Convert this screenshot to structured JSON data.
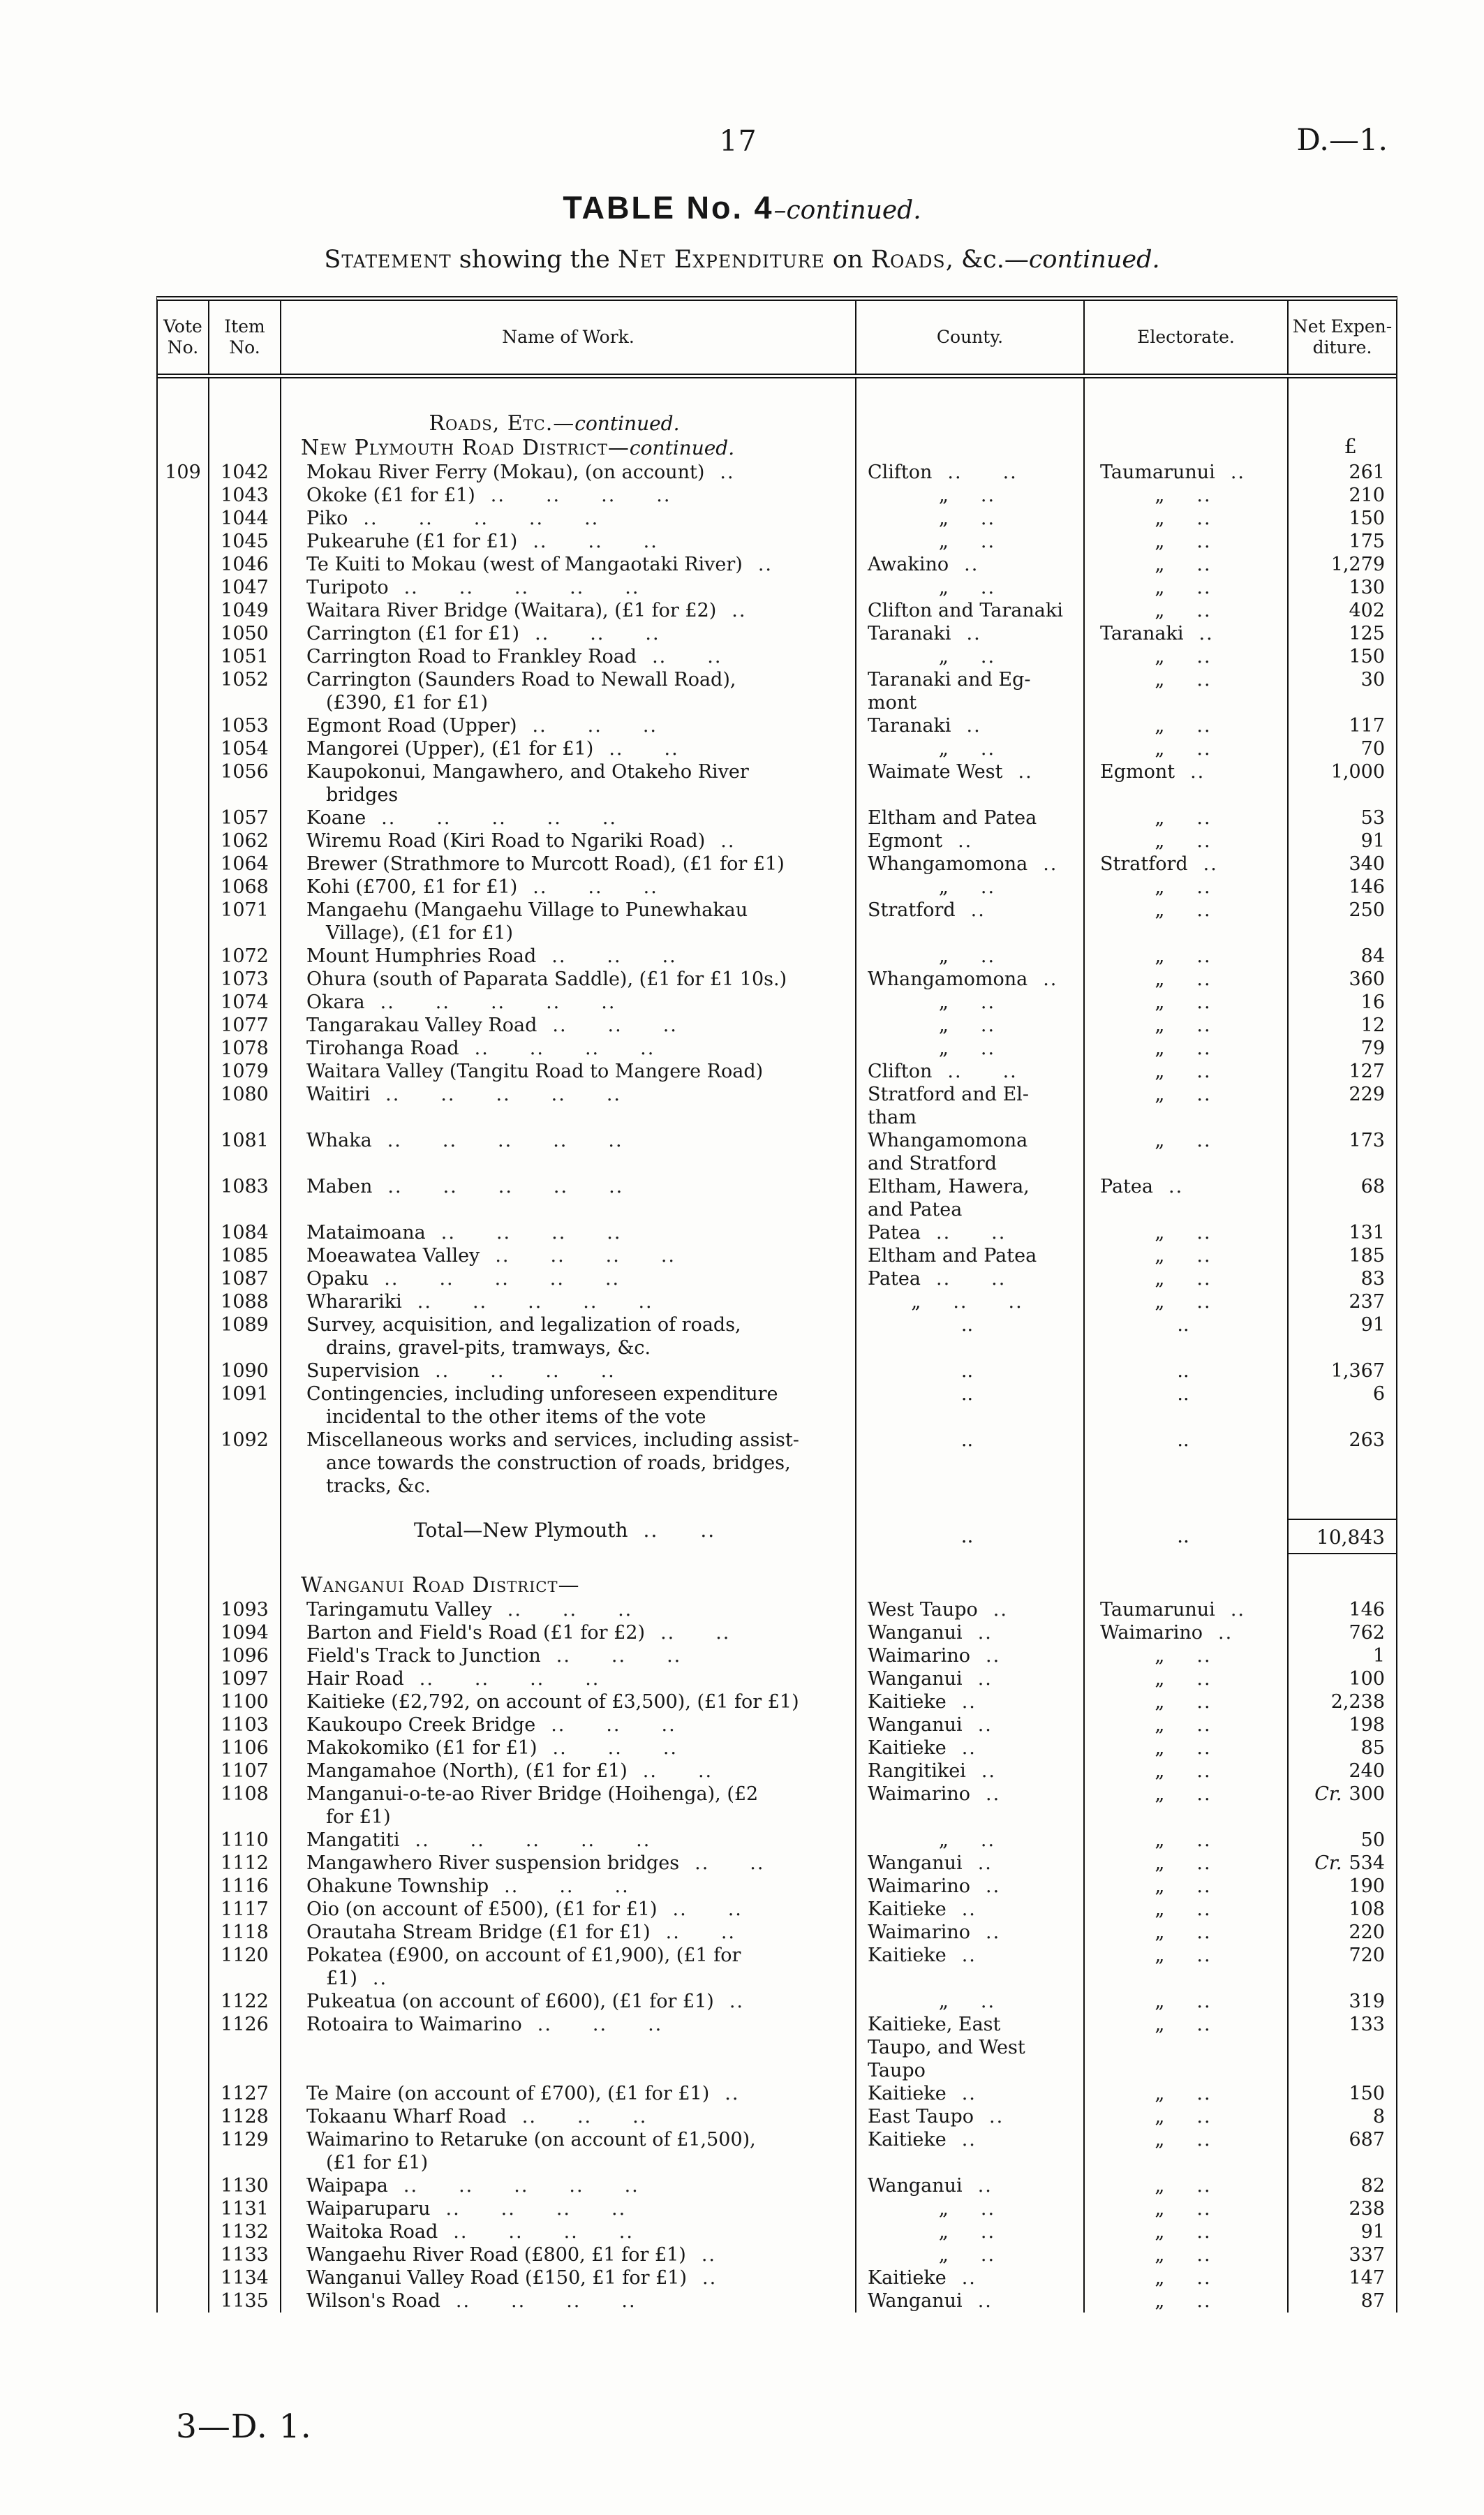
{
  "page": {
    "page_number": "17",
    "doc_ref": "D.—1.",
    "footer": "3—D. 1."
  },
  "title": {
    "main": "TABLE No. 4",
    "dash": "–",
    "cont": "continued."
  },
  "statement": {
    "sc1": "Statement",
    "mid1": " showing the ",
    "sc2": "Net Expenditure",
    "mid2": " on ",
    "sc3": "Roads",
    "tail": ", &c.—",
    "cont": "continued."
  },
  "table": {
    "headers": [
      "Vote\nNo.",
      "Item\nNo.",
      "Name of Work.",
      "County.",
      "Electorate.",
      "Net Expen-\nditure."
    ],
    "rows": [
      {
        "t": "sp",
        "h": 40
      },
      {
        "t": "h1",
        "text": "Roads, Etc.",
        "cont": "continued."
      },
      {
        "t": "h2",
        "text": "New Plymouth Road District",
        "cont": "continued.",
        "pound": "£"
      },
      {
        "v": "109",
        "i": "1042",
        "n": "Mokau River Ferry (Mokau), (on account)",
        "nd": 1,
        "c": "Clifton",
        "cd": 2,
        "e": "Taumarunui",
        "ed": 1,
        "a": "261"
      },
      {
        "i": "1043",
        "n": "Okoke (£1 for £1)",
        "nd": 4,
        "c": "„",
        "cd": 1,
        "e": "„",
        "ed": 1,
        "a": "210"
      },
      {
        "i": "1044",
        "n": "Piko",
        "nd": 5,
        "c": "„",
        "cd": 1,
        "e": "„",
        "ed": 1,
        "a": "150"
      },
      {
        "i": "1045",
        "n": "Pukearuhe (£1 for £1)",
        "nd": 3,
        "c": "„",
        "cd": 1,
        "e": "„",
        "ed": 1,
        "a": "175"
      },
      {
        "i": "1046",
        "n": "Te Kuiti to Mokau (west of Mangaotaki River)",
        "nd": 1,
        "c": "Awakino",
        "cd": 1,
        "e": "„",
        "ed": 1,
        "a": "1,279"
      },
      {
        "i": "1047",
        "n": "Turipoto",
        "nd": 5,
        "c": "„",
        "cd": 1,
        "e": "„",
        "ed": 1,
        "a": "130"
      },
      {
        "i": "1049",
        "n": "Waitara River Bridge (Waitara), (£1 for £2)",
        "nd": 1,
        "c": "Clifton and Taranaki",
        "cd": 0,
        "e": "„",
        "ed": 1,
        "a": "402"
      },
      {
        "i": "1050",
        "n": "Carrington (£1 for £1)",
        "nd": 3,
        "c": "Taranaki",
        "cd": 1,
        "e": "Taranaki",
        "ed": 1,
        "a": "125"
      },
      {
        "i": "1051",
        "n": "Carrington Road to Frankley Road",
        "nd": 2,
        "c": "„",
        "cd": 1,
        "e": "„",
        "ed": 1,
        "a": "150"
      },
      {
        "i": "1052",
        "n": "Carrington (Saunders Road to Newall Road),\n(£390, £1 for £1)",
        "nd": 0,
        "c": "Taranaki and Eg-\nmont",
        "cd": 0,
        "e": "„",
        "ed": 1,
        "a": "30"
      },
      {
        "i": "1053",
        "n": "Egmont Road (Upper)",
        "nd": 3,
        "c": "Taranaki",
        "cd": 1,
        "e": "„",
        "ed": 1,
        "a": "117"
      },
      {
        "i": "1054",
        "n": "Mangorei (Upper), (£1 for £1)",
        "nd": 2,
        "c": "„",
        "cd": 1,
        "e": "„",
        "ed": 1,
        "a": "70"
      },
      {
        "i": "1056",
        "n": "Kaupokonui, Mangawhero, and Otakeho River\nbridges",
        "nd": 0,
        "c": "Waimate West",
        "cd": 1,
        "e": "Egmont",
        "ed": 1,
        "a": "1,000"
      },
      {
        "i": "1057",
        "n": "Koane",
        "nd": 5,
        "c": "Eltham and Patea",
        "cd": 0,
        "e": "„",
        "ed": 1,
        "a": "53"
      },
      {
        "i": "1062",
        "n": "Wiremu Road (Kiri Road to Ngariki Road)",
        "nd": 1,
        "c": "Egmont",
        "cd": 1,
        "e": "„",
        "ed": 1,
        "a": "91"
      },
      {
        "i": "1064",
        "n": "Brewer (Strathmore to Murcott Road), (£1 for £1)",
        "nd": 0,
        "c": "Whangamomona",
        "cd": 1,
        "e": "Stratford",
        "ed": 1,
        "a": "340"
      },
      {
        "i": "1068",
        "n": "Kohi (£700, £1 for £1)",
        "nd": 3,
        "c": "„",
        "cd": 1,
        "e": "„",
        "ed": 1,
        "a": "146"
      },
      {
        "i": "1071",
        "n": "Mangaehu (Mangaehu Village to Punewhakau\nVillage), (£1 for £1)",
        "nd": 0,
        "c": "Stratford",
        "cd": 1,
        "e": "„",
        "ed": 1,
        "a": "250"
      },
      {
        "i": "1072",
        "n": "Mount Humphries Road",
        "nd": 3,
        "c": "„",
        "cd": 1,
        "e": "„",
        "ed": 1,
        "a": "84"
      },
      {
        "i": "1073",
        "n": "Ohura (south of Paparata Saddle), (£1 for £1 10s.)",
        "nd": 0,
        "c": "Whangamomona",
        "cd": 1,
        "e": "„",
        "ed": 1,
        "a": "360"
      },
      {
        "i": "1074",
        "n": "Okara",
        "nd": 5,
        "c": "„",
        "cd": 1,
        "e": "„",
        "ed": 1,
        "a": "16"
      },
      {
        "i": "1077",
        "n": "Tangarakau Valley Road",
        "nd": 3,
        "c": "„",
        "cd": 1,
        "e": "„",
        "ed": 1,
        "a": "12"
      },
      {
        "i": "1078",
        "n": "Tirohanga Road",
        "nd": 4,
        "c": "„",
        "cd": 1,
        "e": "„",
        "ed": 1,
        "a": "79"
      },
      {
        "i": "1079",
        "n": "Waitara Valley (Tangitu Road to Mangere Road)",
        "nd": 0,
        "c": "Clifton",
        "cd": 2,
        "e": "„",
        "ed": 1,
        "a": "127"
      },
      {
        "i": "1080",
        "n": "Waitiri",
        "nd": 5,
        "c": "Stratford and El-\ntham",
        "cd": 0,
        "e": "„",
        "ed": 1,
        "a": "229"
      },
      {
        "i": "1081",
        "n": "Whaka",
        "nd": 5,
        "c": "Whangamomona\nand Stratford",
        "cd": 0,
        "e": "„",
        "ed": 1,
        "a": "173"
      },
      {
        "i": "1083",
        "n": "Maben",
        "nd": 5,
        "c": "Eltham, Hawera,\nand Patea",
        "cd": 0,
        "e": "Patea",
        "ed": 1,
        "a": "68"
      },
      {
        "i": "1084",
        "n": "Mataimoana",
        "nd": 4,
        "c": "Patea",
        "cd": 2,
        "e": "„",
        "ed": 1,
        "a": "131"
      },
      {
        "i": "1085",
        "n": "Moeawatea Valley",
        "nd": 4,
        "c": "Eltham and Patea",
        "cd": 0,
        "e": "„",
        "ed": 1,
        "a": "185"
      },
      {
        "i": "1087",
        "n": "Opaku",
        "nd": 5,
        "c": "Patea",
        "cd": 2,
        "e": "„",
        "ed": 1,
        "a": "83"
      },
      {
        "i": "1088",
        "n": "Wharariki",
        "nd": 5,
        "c": "„",
        "cd": 2,
        "e": "„",
        "ed": 1,
        "a": "237"
      },
      {
        "i": "1089",
        "n": "Survey, acquisition, and legalization of roads,\ndrains, gravel-pits, tramways, &c.",
        "nd": 0,
        "c": "..",
        "cd": 0,
        "e": "..",
        "ed": 0,
        "a": "91"
      },
      {
        "i": "1090",
        "n": "Supervision",
        "nd": 4,
        "c": "..",
        "cd": 0,
        "e": "..",
        "ed": 0,
        "a": "1,367"
      },
      {
        "i": "1091",
        "n": "Contingencies, including unforeseen expenditure\nincidental to the other items of the vote",
        "nd": 0,
        "c": "..",
        "cd": 0,
        "e": "..",
        "ed": 0,
        "a": "6"
      },
      {
        "i": "1092",
        "n": "Miscellaneous works and services, including assist-\nance towards the construction of roads, bridges,\ntracks, &c.",
        "nd": 0,
        "c": "..",
        "cd": 0,
        "e": "..",
        "ed": 0,
        "a": "263"
      },
      {
        "t": "sp",
        "h": 30
      },
      {
        "t": "total",
        "n": "Total—New Plymouth",
        "nd": 2,
        "c": "..",
        "e": "..",
        "a": "10,843"
      },
      {
        "t": "sp",
        "h": 26
      },
      {
        "t": "h2",
        "text": "Wanganui Road District",
        "cont": "",
        "pound": ""
      },
      {
        "i": "1093",
        "n": "Taringamutu Valley",
        "nd": 3,
        "c": "West Taupo",
        "cd": 1,
        "e": "Taumarunui",
        "ed": 1,
        "a": "146"
      },
      {
        "i": "1094",
        "n": "Barton and Field's Road (£1 for £2)",
        "nd": 2,
        "c": "Wanganui",
        "cd": 1,
        "e": "Waimarino",
        "ed": 1,
        "a": "762"
      },
      {
        "i": "1096",
        "n": "Field's Track to Junction",
        "nd": 3,
        "c": "Waimarino",
        "cd": 1,
        "e": "„",
        "ed": 1,
        "a": "1"
      },
      {
        "i": "1097",
        "n": "Hair Road",
        "nd": 4,
        "c": "Wanganui",
        "cd": 1,
        "e": "„",
        "ed": 1,
        "a": "100"
      },
      {
        "i": "1100",
        "n": "Kaitieke (£2,792, on account of £3,500), (£1 for £1)",
        "nd": 0,
        "c": "Kaitieke",
        "cd": 1,
        "e": "„",
        "ed": 1,
        "a": "2,238"
      },
      {
        "i": "1103",
        "n": "Kaukoupo Creek Bridge",
        "nd": 3,
        "c": "Wanganui",
        "cd": 1,
        "e": "„",
        "ed": 1,
        "a": "198"
      },
      {
        "i": "1106",
        "n": "Makokomiko (£1 for £1)",
        "nd": 3,
        "c": "Kaitieke",
        "cd": 1,
        "e": "„",
        "ed": 1,
        "a": "85"
      },
      {
        "i": "1107",
        "n": "Mangamahoe (North), (£1 for £1)",
        "nd": 2,
        "c": "Rangitikei",
        "cd": 1,
        "e": "„",
        "ed": 1,
        "a": "240"
      },
      {
        "i": "1108",
        "n": "Manganui-o-te-ao River Bridge (Hoihenga), (£2\nfor £1)",
        "nd": 0,
        "c": "Waimarino",
        "cd": 1,
        "e": "„",
        "ed": 1,
        "a": "300",
        "cr": true
      },
      {
        "i": "1110",
        "n": "Mangatiti",
        "nd": 5,
        "c": "„",
        "cd": 1,
        "e": "„",
        "ed": 1,
        "a": "50"
      },
      {
        "i": "1112",
        "n": "Mangawhero River suspension bridges",
        "nd": 2,
        "c": "Wanganui",
        "cd": 1,
        "e": "„",
        "ed": 1,
        "a": "534",
        "cr": true
      },
      {
        "i": "1116",
        "n": "Ohakune Township",
        "nd": 3,
        "c": "Waimarino",
        "cd": 1,
        "e": "„",
        "ed": 1,
        "a": "190"
      },
      {
        "i": "1117",
        "n": "Oio (on account of £500), (£1 for £1)",
        "nd": 2,
        "c": "Kaitieke",
        "cd": 1,
        "e": "„",
        "ed": 1,
        "a": "108"
      },
      {
        "i": "1118",
        "n": "Orautaha Stream Bridge (£1 for £1)",
        "nd": 2,
        "c": "Waimarino",
        "cd": 1,
        "e": "„",
        "ed": 1,
        "a": "220"
      },
      {
        "i": "1120",
        "n": "Pokatea (£900, on account of £1,900), (£1 for £1)",
        "nd": 1,
        "c": "Kaitieke",
        "cd": 1,
        "e": "„",
        "ed": 1,
        "a": "720"
      },
      {
        "i": "1122",
        "n": "Pukeatua (on account of £600), (£1 for £1)",
        "nd": 1,
        "c": "„",
        "cd": 1,
        "e": "„",
        "ed": 1,
        "a": "319"
      },
      {
        "i": "1126",
        "n": "Rotoaira to Waimarino",
        "nd": 3,
        "c": "Kaitieke, East\nTaupo, and West\nTaupo",
        "cd": 0,
        "e": "„",
        "ed": 1,
        "a": "133"
      },
      {
        "i": "1127",
        "n": "Te Maire (on account of £700), (£1 for £1)",
        "nd": 1,
        "c": "Kaitieke",
        "cd": 1,
        "e": "„",
        "ed": 1,
        "a": "150"
      },
      {
        "i": "1128",
        "n": "Tokaanu Wharf Road",
        "nd": 3,
        "c": "East Taupo",
        "cd": 1,
        "e": "„",
        "ed": 1,
        "a": "8"
      },
      {
        "i": "1129",
        "n": "Waimarino to Retaruke (on account of £1,500),\n(£1 for £1)",
        "nd": 0,
        "c": "Kaitieke",
        "cd": 1,
        "e": "„",
        "ed": 1,
        "a": "687"
      },
      {
        "i": "1130",
        "n": "Waipapa",
        "nd": 5,
        "c": "Wanganui",
        "cd": 1,
        "e": "„",
        "ed": 1,
        "a": "82"
      },
      {
        "i": "1131",
        "n": "Waiparuparu",
        "nd": 4,
        "c": "„",
        "cd": 1,
        "e": "„",
        "ed": 1,
        "a": "238"
      },
      {
        "i": "1132",
        "n": "Waitoka Road",
        "nd": 4,
        "c": "„",
        "cd": 1,
        "e": "„",
        "ed": 1,
        "a": "91"
      },
      {
        "i": "1133",
        "n": "Wangaehu River Road (£800, £1 for £1)",
        "nd": 1,
        "c": "„",
        "cd": 1,
        "e": "„",
        "ed": 1,
        "a": "337"
      },
      {
        "i": "1134",
        "n": "Wanganui Valley Road (£150, £1 for £1)",
        "nd": 1,
        "c": "Kaitieke",
        "cd": 1,
        "e": "„",
        "ed": 1,
        "a": "147"
      },
      {
        "i": "1135",
        "n": "Wilson's Road",
        "nd": 4,
        "c": "Wanganui",
        "cd": 1,
        "e": "„",
        "ed": 1,
        "a": "87"
      }
    ]
  }
}
